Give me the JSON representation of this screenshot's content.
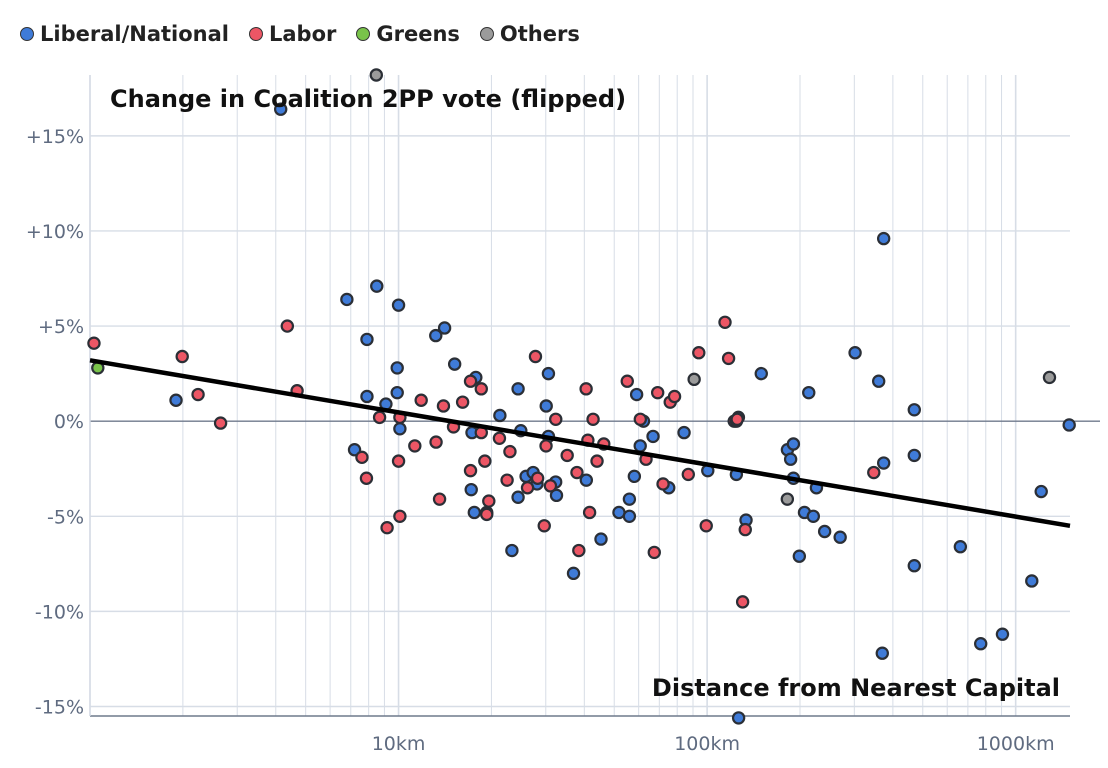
{
  "colors": {
    "liberal_national": "#3f7bd8",
    "labor": "#ec5665",
    "greens": "#79c34a",
    "others": "#9b9b9b",
    "trend_line": "#000000",
    "grid": "#d7dde6",
    "axis_text": "#5f6b80"
  },
  "chart_data": {
    "type": "scatter",
    "title": "Change in Coalition 2PP vote (flipped)",
    "xlabel": "Distance from Nearest Capital",
    "ylabel": "",
    "x_scale": "log",
    "xlim": [
      1,
      1500
    ],
    "ylim": [
      -15.5,
      18.2
    ],
    "x_ticks": [
      {
        "value": 10,
        "label": "10km"
      },
      {
        "value": 100,
        "label": "100km"
      },
      {
        "value": 1000,
        "label": "1000km"
      }
    ],
    "y_ticks": [
      {
        "value": 15,
        "label": "+15%"
      },
      {
        "value": 10,
        "label": "+10%"
      },
      {
        "value": 5,
        "label": "+5%"
      },
      {
        "value": 0,
        "label": "0%"
      },
      {
        "value": -5,
        "label": "-5%"
      },
      {
        "value": -10,
        "label": "-10%"
      },
      {
        "value": -15,
        "label": "-15%"
      }
    ],
    "legend": [
      {
        "name": "Liberal/National",
        "key": "liberal_national"
      },
      {
        "name": "Labor",
        "key": "labor"
      },
      {
        "name": "Greens",
        "key": "greens"
      },
      {
        "name": "Others",
        "key": "others"
      }
    ],
    "trend_line": {
      "start": {
        "x": 1,
        "y": 3.2
      },
      "end": {
        "x": 1500,
        "y": -5.5
      }
    },
    "series": [
      {
        "name": "Liberal/National",
        "key": "liberal_national",
        "points": [
          {
            "x": 4.15,
            "y": 16.4
          },
          {
            "x": 1.9,
            "y": 1.1
          },
          {
            "x": 6.8,
            "y": 6.4
          },
          {
            "x": 8.5,
            "y": 7.1
          },
          {
            "x": 10,
            "y": 6.1
          },
          {
            "x": 7.9,
            "y": 4.3
          },
          {
            "x": 7.2,
            "y": -1.5
          },
          {
            "x": 7.9,
            "y": 1.3
          },
          {
            "x": 9.1,
            "y": 0.9
          },
          {
            "x": 9.9,
            "y": 1.5
          },
          {
            "x": 9.9,
            "y": 2.8
          },
          {
            "x": 10.1,
            "y": -0.4
          },
          {
            "x": 13.2,
            "y": 4.5
          },
          {
            "x": 14.1,
            "y": 4.9
          },
          {
            "x": 15.2,
            "y": 3.0
          },
          {
            "x": 17.8,
            "y": 2.3
          },
          {
            "x": 17.3,
            "y": -0.6
          },
          {
            "x": 17.2,
            "y": -3.6
          },
          {
            "x": 17.6,
            "y": -4.8
          },
          {
            "x": 21.3,
            "y": 0.3
          },
          {
            "x": 24.4,
            "y": 1.7
          },
          {
            "x": 24.9,
            "y": -0.5
          },
          {
            "x": 24.4,
            "y": -4.0
          },
          {
            "x": 25.9,
            "y": -2.9
          },
          {
            "x": 27.3,
            "y": -2.7
          },
          {
            "x": 28.1,
            "y": -3.3
          },
          {
            "x": 23.3,
            "y": -6.8
          },
          {
            "x": 30.6,
            "y": 2.5
          },
          {
            "x": 30.1,
            "y": 0.8
          },
          {
            "x": 30.6,
            "y": -0.8
          },
          {
            "x": 32.3,
            "y": -3.2
          },
          {
            "x": 32.5,
            "y": -3.9
          },
          {
            "x": 36.9,
            "y": -8.0
          },
          {
            "x": 40.6,
            "y": -3.1
          },
          {
            "x": 45.3,
            "y": -6.2
          },
          {
            "x": 51.8,
            "y": -4.8
          },
          {
            "x": 56.0,
            "y": -4.1
          },
          {
            "x": 56.0,
            "y": -5.0
          },
          {
            "x": 58.1,
            "y": -2.9
          },
          {
            "x": 59.1,
            "y": 1.4
          },
          {
            "x": 60.7,
            "y": -1.3
          },
          {
            "x": 62.2,
            "y": 0.0
          },
          {
            "x": 66.8,
            "y": -0.8
          },
          {
            "x": 75.1,
            "y": -3.5
          },
          {
            "x": 84.2,
            "y": -0.6
          },
          {
            "x": 100.5,
            "y": -2.6
          },
          {
            "x": 126.3,
            "y": 0.2
          },
          {
            "x": 124.4,
            "y": -2.8
          },
          {
            "x": 133.7,
            "y": -5.2
          },
          {
            "x": 149.8,
            "y": 2.5
          },
          {
            "x": 182.1,
            "y": -1.5
          },
          {
            "x": 186.5,
            "y": -2.0
          },
          {
            "x": 190.4,
            "y": -1.2
          },
          {
            "x": 190.4,
            "y": -3.0
          },
          {
            "x": 199.0,
            "y": -7.1
          },
          {
            "x": 206.8,
            "y": -4.8
          },
          {
            "x": 213.5,
            "y": 1.5
          },
          {
            "x": 220.9,
            "y": -5.0
          },
          {
            "x": 226.1,
            "y": -3.5
          },
          {
            "x": 240.4,
            "y": -5.8
          },
          {
            "x": 269.9,
            "y": -6.1
          },
          {
            "x": 301.7,
            "y": 3.6
          },
          {
            "x": 359.8,
            "y": 2.1
          },
          {
            "x": 373.5,
            "y": -2.2
          },
          {
            "x": 373.5,
            "y": 9.6
          },
          {
            "x": 369.6,
            "y": -12.2
          },
          {
            "x": 469.3,
            "y": 0.6
          },
          {
            "x": 469.3,
            "y": -1.8
          },
          {
            "x": 469.3,
            "y": -7.6
          },
          {
            "x": 661.8,
            "y": -6.6
          },
          {
            "x": 770.4,
            "y": -11.7
          },
          {
            "x": 906.1,
            "y": -11.2
          },
          {
            "x": 1127.8,
            "y": -8.4
          },
          {
            "x": 1210.0,
            "y": -3.7
          },
          {
            "x": 1491.0,
            "y": -0.2
          },
          {
            "x": 126.5,
            "y": -15.6
          }
        ]
      },
      {
        "name": "Labor",
        "key": "labor",
        "points": [
          {
            "x": 1.03,
            "y": 4.1
          },
          {
            "x": 1.99,
            "y": 3.4
          },
          {
            "x": 2.24,
            "y": 1.4
          },
          {
            "x": 2.65,
            "y": -0.1
          },
          {
            "x": 4.36,
            "y": 5.0
          },
          {
            "x": 4.69,
            "y": 1.6
          },
          {
            "x": 7.61,
            "y": -1.9
          },
          {
            "x": 7.87,
            "y": -3.0
          },
          {
            "x": 8.68,
            "y": 0.2
          },
          {
            "x": 9.18,
            "y": -5.6
          },
          {
            "x": 10.0,
            "y": -2.1
          },
          {
            "x": 10.1,
            "y": -5.0
          },
          {
            "x": 10.1,
            "y": 0.2
          },
          {
            "x": 11.29,
            "y": -1.3
          },
          {
            "x": 11.84,
            "y": 1.1
          },
          {
            "x": 13.23,
            "y": -1.1
          },
          {
            "x": 13.58,
            "y": -4.1
          },
          {
            "x": 13.98,
            "y": 0.8
          },
          {
            "x": 15.07,
            "y": -0.3
          },
          {
            "x": 16.13,
            "y": 1.0
          },
          {
            "x": 17.11,
            "y": 2.1
          },
          {
            "x": 17.11,
            "y": -2.6
          },
          {
            "x": 18.54,
            "y": 1.7
          },
          {
            "x": 18.54,
            "y": -0.6
          },
          {
            "x": 19.04,
            "y": -2.1
          },
          {
            "x": 19.31,
            "y": -4.8
          },
          {
            "x": 19.31,
            "y": -4.9
          },
          {
            "x": 19.61,
            "y": -4.2
          },
          {
            "x": 21.23,
            "y": -0.9
          },
          {
            "x": 22.48,
            "y": -3.1
          },
          {
            "x": 22.96,
            "y": -1.6
          },
          {
            "x": 26.18,
            "y": -3.5
          },
          {
            "x": 27.78,
            "y": 3.4
          },
          {
            "x": 28.23,
            "y": -3.0
          },
          {
            "x": 29.66,
            "y": -5.5
          },
          {
            "x": 30.06,
            "y": -1.3
          },
          {
            "x": 31.06,
            "y": -3.4
          },
          {
            "x": 32.32,
            "y": 0.1
          },
          {
            "x": 35.2,
            "y": -1.8
          },
          {
            "x": 37.86,
            "y": -2.7
          },
          {
            "x": 38.39,
            "y": -6.8
          },
          {
            "x": 40.54,
            "y": 1.7
          },
          {
            "x": 41.07,
            "y": -1.0
          },
          {
            "x": 41.61,
            "y": -4.8
          },
          {
            "x": 42.7,
            "y": 0.1
          },
          {
            "x": 43.98,
            "y": -2.1
          },
          {
            "x": 46.25,
            "y": -1.2
          },
          {
            "x": 55.11,
            "y": 2.1
          },
          {
            "x": 60.75,
            "y": 0.1
          },
          {
            "x": 63.39,
            "y": -2.0
          },
          {
            "x": 67.42,
            "y": -6.9
          },
          {
            "x": 69.15,
            "y": 1.5
          },
          {
            "x": 71.98,
            "y": -3.3
          },
          {
            "x": 75.94,
            "y": 1.0
          },
          {
            "x": 78.43,
            "y": 1.3
          },
          {
            "x": 86.9,
            "y": -2.8
          },
          {
            "x": 93.97,
            "y": 3.6
          },
          {
            "x": 99.35,
            "y": -5.5
          },
          {
            "x": 114.29,
            "y": 5.2
          },
          {
            "x": 117.38,
            "y": 3.3
          },
          {
            "x": 122.4,
            "y": 0.0
          },
          {
            "x": 124.5,
            "y": 0.0
          },
          {
            "x": 125.17,
            "y": 0.1
          },
          {
            "x": 132.93,
            "y": -5.7
          },
          {
            "x": 130.36,
            "y": -9.5
          },
          {
            "x": 346.87,
            "y": -2.7
          }
        ]
      },
      {
        "name": "Greens",
        "key": "greens",
        "points": [
          {
            "x": 1.06,
            "y": 2.8
          }
        ]
      },
      {
        "name": "Others",
        "key": "others",
        "points": [
          {
            "x": 8.47,
            "y": 18.2
          },
          {
            "x": 90.78,
            "y": 2.2
          },
          {
            "x": 181.97,
            "y": -4.1
          },
          {
            "x": 1287.0,
            "y": 2.3
          }
        ]
      }
    ]
  }
}
